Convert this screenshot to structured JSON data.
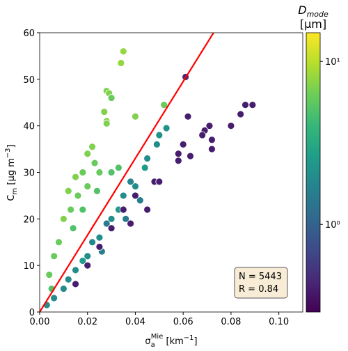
{
  "chart_data": {
    "type": "scatter",
    "xlabel": [
      "σ",
      "a",
      "Mie",
      " [km",
      "−1",
      "]"
    ],
    "ylabel": [
      "C",
      "m",
      " [μg m",
      "−3",
      "]"
    ],
    "colorbar_label": [
      "D",
      "mode",
      "[μm]"
    ],
    "xlim": [
      0,
      0.11
    ],
    "ylim": [
      0,
      60
    ],
    "xticks": [
      {
        "value": 0,
        "label": "0.00"
      },
      {
        "value": 0.02,
        "label": "0.02"
      },
      {
        "value": 0.04,
        "label": "0.04"
      },
      {
        "value": 0.06,
        "label": "0.06"
      },
      {
        "value": 0.08,
        "label": "0.08"
      },
      {
        "value": 0.1,
        "label": "0.10"
      }
    ],
    "yticks": [
      0,
      10,
      20,
      30,
      40,
      50,
      60
    ],
    "colormap": "viridis",
    "clim": [
      0.29,
      15
    ],
    "cscale": "log",
    "cticks": [
      {
        "value": 1,
        "label": "10⁰"
      },
      {
        "value": 10,
        "label": "10¹"
      }
    ],
    "annotation": [
      "N = 5443",
      "R = 0.84"
    ],
    "fit_line": {
      "x": [
        0,
        0.0727
      ],
      "y": [
        0,
        60
      ],
      "color": "#ff0000"
    },
    "points": {
      "x": [
        0.035,
        0.034,
        0.028,
        0.029,
        0.03,
        0.027,
        0.028,
        0.028,
        0.04,
        0.052,
        0.022,
        0.02,
        0.023,
        0.018,
        0.015,
        0.012,
        0.016,
        0.02,
        0.025,
        0.01,
        0.013,
        0.008,
        0.006,
        0.004,
        0.018,
        0.024,
        0.03,
        0.033,
        0.014,
        0.005,
        0.053,
        0.05,
        0.049,
        0.045,
        0.044,
        0.04,
        0.035,
        0.038,
        0.03,
        0.033,
        0.025,
        0.028,
        0.02,
        0.022,
        0.015,
        0.018,
        0.01,
        0.012,
        0.006,
        0.003,
        0.042,
        0.036,
        0.026,
        0.089,
        0.086,
        0.084,
        0.08,
        0.071,
        0.069,
        0.068,
        0.072,
        0.072,
        0.062,
        0.06,
        0.058,
        0.063,
        0.058,
        0.048,
        0.04,
        0.035,
        0.03,
        0.045,
        0.038,
        0.05,
        0.061,
        0.025,
        0.02,
        0.015
      ],
      "y": [
        56,
        53.5,
        47.5,
        47,
        46,
        43,
        41,
        40.5,
        42,
        44.5,
        35.5,
        34,
        32,
        30,
        29,
        26,
        25,
        27,
        30,
        20,
        22,
        15,
        12,
        8,
        22,
        26,
        30,
        31,
        18,
        5,
        39.5,
        38,
        36,
        33,
        31,
        27,
        25,
        28,
        20,
        22,
        16,
        19,
        12,
        15,
        9,
        11,
        5,
        7,
        3,
        1.5,
        24,
        20,
        13,
        44.5,
        44.5,
        42.5,
        40,
        40,
        39,
        38,
        37,
        35,
        42,
        36,
        34,
        33.5,
        32.5,
        28,
        25,
        22,
        18,
        22,
        19,
        28,
        50.5,
        14,
        10,
        6
      ],
      "c": [
        8,
        8,
        7,
        7,
        6,
        7,
        7,
        7,
        7,
        6,
        7,
        7,
        6,
        6,
        7,
        7,
        6,
        6,
        6,
        7,
        6,
        6,
        6,
        6,
        5,
        5,
        5,
        5,
        5,
        5,
        2.2,
        2.2,
        2,
        2,
        2.5,
        2,
        2,
        1.8,
        2,
        2.5,
        2,
        1.5,
        2,
        1.8,
        2,
        2.5,
        2,
        2,
        2,
        2,
        1.6,
        1.5,
        1.6,
        0.4,
        0.4,
        0.4,
        0.4,
        0.4,
        0.4,
        0.4,
        0.4,
        0.4,
        0.4,
        0.4,
        0.4,
        0.4,
        0.4,
        0.4,
        0.4,
        0.4,
        0.4,
        0.4,
        0.4,
        0.4,
        0.45,
        0.4,
        0.4,
        0.4
      ]
    }
  }
}
